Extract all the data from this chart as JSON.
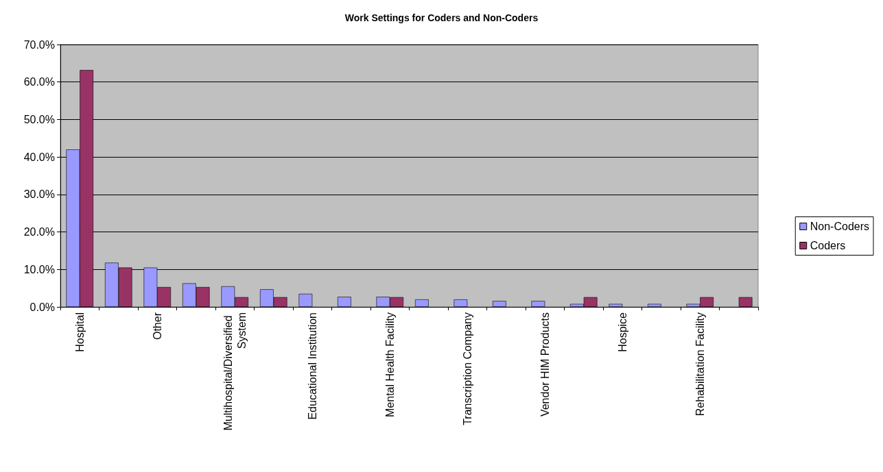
{
  "chart_data": {
    "type": "bar",
    "title": "Work Settings for Coders and Non-Coders",
    "categories": [
      "Hospital",
      null,
      "Other",
      null,
      "Multihospital/Diversified System",
      null,
      "Educational Institution",
      null,
      "Mental Health Facility",
      null,
      "Transcription Company",
      null,
      "Vendor HIM Products",
      null,
      "Hospice",
      null,
      "Rehabilitation Facility",
      null
    ],
    "series": [
      {
        "name": "Non-Coders",
        "color": "#9999ff",
        "values": [
          42.0,
          11.8,
          10.5,
          6.3,
          5.5,
          4.7,
          3.5,
          2.7,
          2.7,
          2.0,
          2.0,
          1.6,
          1.6,
          0.8,
          0.8,
          0.8,
          0.8,
          0
        ]
      },
      {
        "name": "Coders",
        "color": "#993366",
        "values": [
          63.2,
          10.5,
          5.3,
          5.3,
          2.6,
          2.6,
          0,
          0,
          2.6,
          0,
          0,
          0,
          0,
          2.6,
          0,
          0,
          2.6,
          2.6
        ]
      }
    ],
    "ylim": [
      0,
      70
    ],
    "yticks": [
      {
        "value": 0,
        "label": "0.0%"
      },
      {
        "value": 10,
        "label": "10.0%"
      },
      {
        "value": 20,
        "label": "20.0%"
      },
      {
        "value": 30,
        "label": "30.0%"
      },
      {
        "value": 40,
        "label": "40.0%"
      },
      {
        "value": 50,
        "label": "50.0%"
      },
      {
        "value": 60,
        "label": "60.0%"
      },
      {
        "value": 70,
        "label": "70.0%"
      }
    ],
    "grid": "y",
    "legend": "right"
  }
}
